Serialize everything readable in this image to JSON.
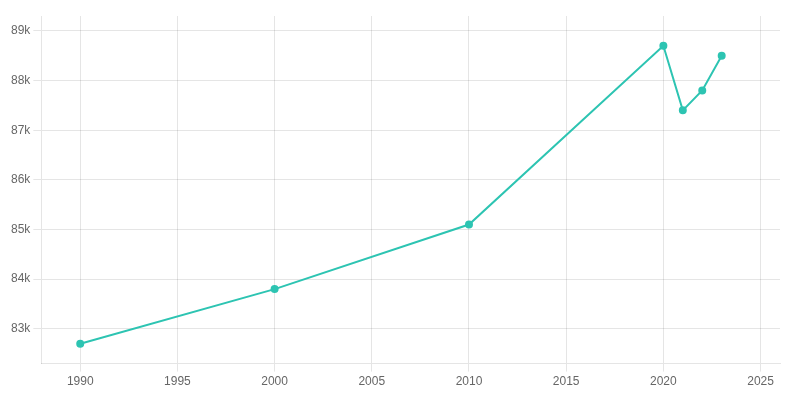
{
  "chart_data": {
    "type": "line",
    "x": [
      1990,
      2000,
      2010,
      2020,
      2021,
      2022,
      2023
    ],
    "values": [
      82700,
      83800,
      85100,
      88700,
      87400,
      87800,
      88500
    ],
    "color": "#2DC4B2",
    "marker": "circle",
    "xlim": [
      1988,
      2026
    ],
    "ylim": [
      82300,
      89300
    ],
    "xticks": [
      1990,
      1995,
      2000,
      2005,
      2010,
      2015,
      2020,
      2025
    ],
    "yticks": [
      {
        "value": 83000,
        "label": "83k"
      },
      {
        "value": 84000,
        "label": "84k"
      },
      {
        "value": 85000,
        "label": "85k"
      },
      {
        "value": 86000,
        "label": "86k"
      },
      {
        "value": 87000,
        "label": "87k"
      },
      {
        "value": 88000,
        "label": "88k"
      },
      {
        "value": 89000,
        "label": "89k"
      }
    ],
    "grid": true
  }
}
